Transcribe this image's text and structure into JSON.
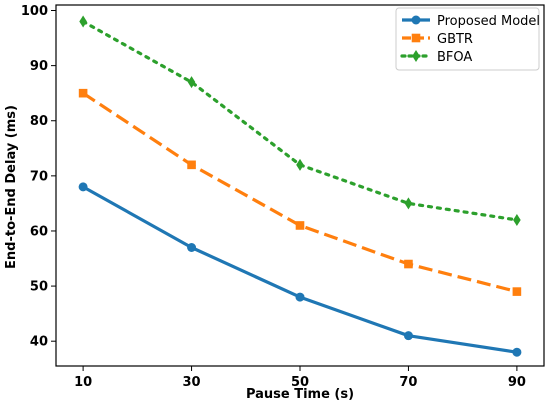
{
  "chart_data": {
    "type": "line",
    "title": "",
    "xlabel": "Pause Time (s)",
    "ylabel": "End-to-End Delay (ms)",
    "x": [
      10,
      30,
      50,
      70,
      90
    ],
    "xticks": [
      "10",
      "30",
      "50",
      "70",
      "90"
    ],
    "yticks": [
      "40",
      "50",
      "60",
      "70",
      "80",
      "90",
      "100"
    ],
    "xlim": [
      5,
      95
    ],
    "ylim": [
      35.5,
      101
    ],
    "grid": false,
    "legend_position": "top-right",
    "series": [
      {
        "name": "Proposed Model",
        "values": [
          68,
          57,
          48,
          41,
          38
        ],
        "color": "#1f77b4",
        "line_style": "solid",
        "marker": "circle"
      },
      {
        "name": "GBTR",
        "values": [
          85,
          72,
          61,
          54,
          49
        ],
        "color": "#ff7f0e",
        "line_style": "dashed",
        "marker": "square"
      },
      {
        "name": "BFOA",
        "values": [
          98,
          87,
          72,
          65,
          62
        ],
        "color": "#2ca02c",
        "line_style": "dotted",
        "marker": "thin-diamond"
      }
    ]
  }
}
